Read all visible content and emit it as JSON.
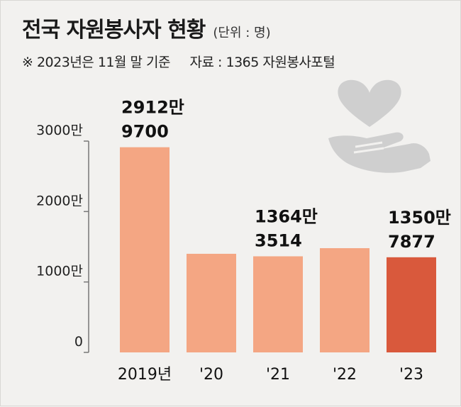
{
  "header": {
    "title": "전국 자원봉사자 현황",
    "unit": "(단위 : 명)",
    "note": "※ 2023년은 11월 말 기준",
    "source": "자료 : 1365 자원봉사포털"
  },
  "colors": {
    "bar": "#f4a683",
    "bar_highlight": "#d9593c",
    "axis": "#777777",
    "icon": "#cfcfcf"
  },
  "icon": "heart-on-hand-icon",
  "chart_data": {
    "type": "bar",
    "categories": [
      "2019년",
      "'20",
      "'21",
      "'22",
      "'23"
    ],
    "values": [
      29129700,
      14000000,
      13643514,
      14800000,
      13507877
    ],
    "highlight_index": 4,
    "ylim": [
      0,
      30000000
    ],
    "yticks": [
      {
        "value": 0,
        "label": "0"
      },
      {
        "value": 10000000,
        "label": "1000만"
      },
      {
        "value": 20000000,
        "label": "2000만"
      },
      {
        "value": 30000000,
        "label": "3000만"
      }
    ],
    "data_labels": [
      {
        "index": 0,
        "line1": "2912만",
        "line2": "9700"
      },
      {
        "index": 2,
        "line1": "1364만",
        "line2": "3514"
      },
      {
        "index": 4,
        "line1": "1350만",
        "line2": "7877"
      }
    ],
    "grid": false,
    "legend": "none"
  }
}
